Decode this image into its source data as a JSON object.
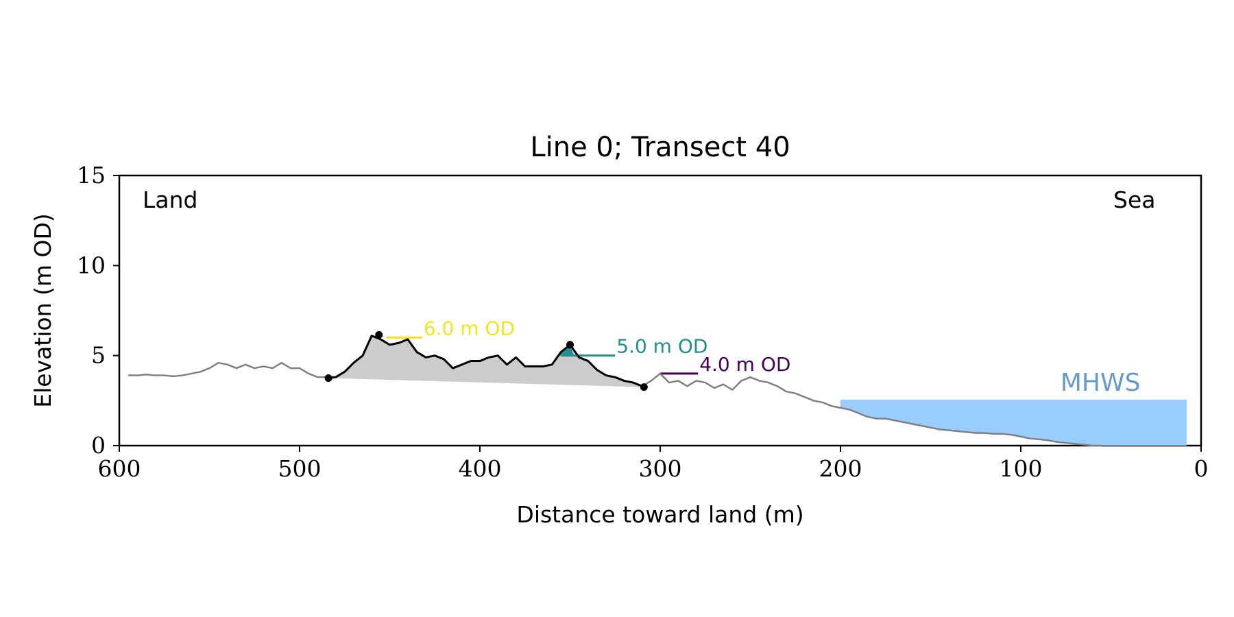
{
  "chart_data": {
    "type": "line",
    "title": "Line 0; Transect 40",
    "xlabel": "Distance toward land (m)",
    "ylabel": "Elevation (m OD)",
    "xlim": [
      600,
      0
    ],
    "ylim": [
      0,
      15
    ],
    "x_ticks": [
      600,
      500,
      400,
      300,
      200,
      100,
      0
    ],
    "y_ticks": [
      0,
      5,
      10,
      15
    ],
    "grid": false,
    "corner_labels": {
      "left": "Land",
      "right": "Sea"
    },
    "colors": {
      "profile": "#808080",
      "dune": "#000000",
      "dune_fill": "#cccccc",
      "mhws": "#99ccff",
      "mhws_text": "#6699cc",
      "level_6": "#f2e51d",
      "level_5": "#21908d",
      "level_4": "#440154"
    },
    "profile": {
      "x": [
        595,
        590,
        585,
        580,
        575,
        570,
        565,
        560,
        555,
        550,
        545,
        540,
        535,
        530,
        525,
        520,
        515,
        510,
        505,
        500,
        495,
        490,
        485,
        480,
        475,
        470,
        465,
        460,
        455,
        450,
        445,
        440,
        435,
        430,
        425,
        420,
        415,
        410,
        405,
        400,
        395,
        390,
        385,
        380,
        375,
        370,
        365,
        360,
        355,
        350,
        345,
        340,
        335,
        330,
        325,
        320,
        315,
        310,
        305,
        300,
        295,
        290,
        285,
        280,
        275,
        270,
        265,
        260,
        255,
        250,
        245,
        240,
        235,
        230,
        225,
        220,
        215,
        210,
        205,
        200,
        195,
        190,
        185,
        180,
        175,
        170,
        165,
        160,
        155,
        150,
        145,
        140,
        135,
        130,
        125,
        120,
        115,
        110,
        105,
        100,
        95,
        90,
        85,
        80,
        75,
        70,
        65,
        60,
        55
      ],
      "y": [
        3.9,
        3.9,
        3.95,
        3.9,
        3.9,
        3.85,
        3.9,
        4.0,
        4.1,
        4.3,
        4.6,
        4.5,
        4.3,
        4.5,
        4.3,
        4.4,
        4.3,
        4.6,
        4.3,
        4.3,
        4.0,
        3.8,
        3.8,
        3.8,
        4.1,
        4.6,
        5.0,
        6.1,
        5.9,
        5.6,
        5.7,
        5.9,
        5.2,
        4.9,
        5.0,
        4.8,
        4.3,
        4.5,
        4.7,
        4.7,
        4.9,
        5.0,
        4.5,
        4.9,
        4.4,
        4.4,
        4.4,
        4.5,
        5.2,
        5.6,
        4.9,
        4.7,
        4.2,
        3.9,
        3.8,
        3.6,
        3.5,
        3.3,
        3.6,
        4.0,
        3.5,
        3.6,
        3.3,
        3.6,
        3.5,
        3.2,
        3.4,
        3.1,
        3.6,
        3.8,
        3.6,
        3.5,
        3.3,
        3.0,
        2.9,
        2.7,
        2.5,
        2.4,
        2.2,
        2.1,
        2.0,
        1.8,
        1.6,
        1.5,
        1.5,
        1.4,
        1.3,
        1.2,
        1.1,
        1.0,
        0.9,
        0.85,
        0.8,
        0.75,
        0.7,
        0.7,
        0.65,
        0.65,
        0.6,
        0.5,
        0.4,
        0.35,
        0.3,
        0.2,
        0.15,
        0.1,
        0.05,
        0.0,
        0.0
      ]
    },
    "dune_section": {
      "x_from": 484,
      "x_to": 309,
      "toe_point": {
        "x": 484,
        "y": 3.75
      },
      "heel_point": {
        "x": 309,
        "y": 3.25
      },
      "crest_points": [
        {
          "x": 456,
          "y": 6.15
        },
        {
          "x": 350,
          "y": 5.6
        }
      ]
    },
    "level_markers": [
      {
        "label": "6.0 m OD",
        "level": 6.0,
        "x_from": 452,
        "x_to": 432
      },
      {
        "label": "5.0 m OD",
        "level": 5.0,
        "x_from": 355,
        "x_to": 325
      },
      {
        "label": "4.0 m OD",
        "level": 4.0,
        "x_from": 300,
        "x_to": 279
      }
    ],
    "mhws": {
      "label": "MHWS",
      "level": 2.55,
      "x_from": 200,
      "x_to": 8
    }
  }
}
